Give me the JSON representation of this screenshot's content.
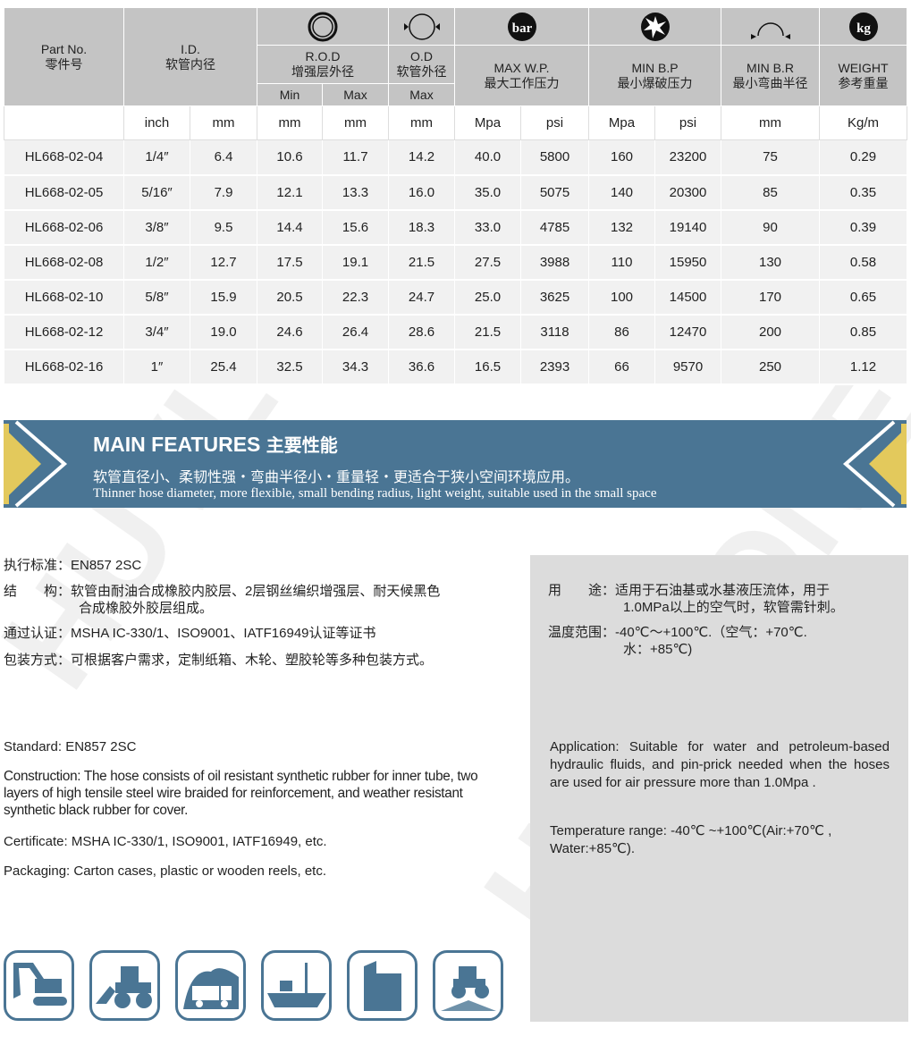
{
  "watermark": "HUVLONE",
  "colors": {
    "header_gray": "#c4c4c4",
    "banner_blue": "#4a7594",
    "accent_yellow": "#e3c95c",
    "panel_gray": "#dcdcdc"
  },
  "table": {
    "headers": {
      "part": [
        "Part No.",
        "零件号"
      ],
      "id": [
        "I.D.",
        "软管内径"
      ],
      "rod": [
        "R.O.D",
        "增强层外径"
      ],
      "od": [
        "O.D",
        "软管外径"
      ],
      "wp": [
        "MAX W.P.",
        "最大工作压力"
      ],
      "bp": [
        "MIN B.P",
        "最小爆破压力"
      ],
      "br": [
        "MIN B.R",
        "最小弯曲半径"
      ],
      "weight": [
        "WEIGHT",
        "参考重量"
      ],
      "rod_min": "Min",
      "rod_max": "Max",
      "od_max": "Max",
      "bar_icon": "bar",
      "kg_icon": "kg"
    },
    "units": [
      "",
      "inch",
      "mm",
      "mm",
      "mm",
      "mm",
      "Mpa",
      "psi",
      "Mpa",
      "psi",
      "mm",
      "Kg/m"
    ],
    "rows": [
      [
        "HL668-02-04",
        "1/4″",
        "6.4",
        "10.6",
        "11.7",
        "14.2",
        "40.0",
        "5800",
        "160",
        "23200",
        "75",
        "0.29"
      ],
      [
        "HL668-02-05",
        "5/16″",
        "7.9",
        "12.1",
        "13.3",
        "16.0",
        "35.0",
        "5075",
        "140",
        "20300",
        "85",
        "0.35"
      ],
      [
        "HL668-02-06",
        "3/8″",
        "9.5",
        "14.4",
        "15.6",
        "18.3",
        "33.0",
        "4785",
        "132",
        "19140",
        "90",
        "0.39"
      ],
      [
        "HL668-02-08",
        "1/2″",
        "12.7",
        "17.5",
        "19.1",
        "21.5",
        "27.5",
        "3988",
        "110",
        "15950",
        "130",
        "0.58"
      ],
      [
        "HL668-02-10",
        "5/8″",
        "15.9",
        "20.5",
        "22.3",
        "24.7",
        "25.0",
        "3625",
        "100",
        "14500",
        "170",
        "0.65"
      ],
      [
        "HL668-02-12",
        "3/4″",
        "19.0",
        "24.6",
        "26.4",
        "28.6",
        "21.5",
        "3118",
        "86",
        "12470",
        "200",
        "0.85"
      ],
      [
        "HL668-02-16",
        "1″",
        "25.4",
        "32.5",
        "34.3",
        "36.6",
        "16.5",
        "2393",
        "66",
        "9570",
        "250",
        "1.12"
      ]
    ]
  },
  "features": {
    "title": "MAIN FEATURES",
    "title_cn": "主要性能",
    "cn": "软管直径小、柔韧性强・弯曲半径小・重量轻・更适合于狭小空间环境应用。",
    "en": "Thinner hose diameter, more flexible, small bending radius, light weight, suitable used in the small space"
  },
  "cn_left": {
    "standard": "执行标准：EN857 2SC",
    "construction": "结　　构：软管由耐油合成橡胶内胶层、2层钢丝编织增强层、耐天候黑色",
    "construction2": "合成橡胶外胶层组成。",
    "cert": "通过认证：MSHA IC-330/1、ISO9001、IATF16949认证等证书",
    "pack": "包装方式：可根据客户需求，定制纸箱、木轮、塑胶轮等多种包装方式。"
  },
  "cn_right": {
    "use": "用　　途：适用于石油基或水基液压流体，用于",
    "use2": "1.0MPa以上的空气时，软管需针刺。",
    "temp": "温度范围：-40℃～+100℃.（空气：+70℃.",
    "temp2": "水：+85℃)"
  },
  "en_left": {
    "standard": "Standard: EN857 2SC",
    "construction": "Construction:  The hose consists of oil resistant synthetic rubber for inner tube, two layers of high tensile steel wire braided for reinforcement, and weather resistant synthetic black rubber for cover.",
    "cert": "Certificate: MSHA IC-330/1,  ISO9001,  IATF16949, etc.",
    "pack": "Packaging: Carton cases, plastic or wooden reels, etc."
  },
  "en_right": {
    "application": "Application: Suitable for water and petroleum-based hydraulic fluids, and pin-prick needed when the hoses are used for air pressure more than 1.0Mpa .",
    "temp": "Temperature range: -40℃ ~+100℃(Air:+70℃ , Water:+85℃)."
  },
  "application_icons": [
    "excavator-icon",
    "wheel-loader-icon",
    "mining-truck-icon",
    "ship-icon",
    "building-icon",
    "tractor-icon"
  ]
}
